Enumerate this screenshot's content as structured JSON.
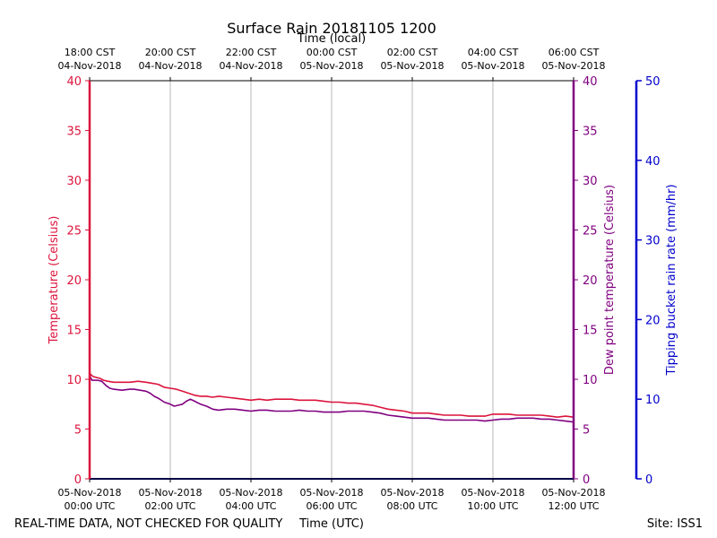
{
  "chart_data": {
    "type": "line",
    "title": "Surface Rain 20181105 1200",
    "top_axis_label": "Time (local)",
    "xlabel": "Time (UTC)",
    "footer_left": "REAL-TIME DATA, NOT CHECKED FOR QUALITY",
    "footer_right": "Site: ISS1",
    "x_range_hours": [
      0,
      12
    ],
    "x_ticks_utc": [
      {
        "hour": 0,
        "line1": "05-Nov-2018",
        "line2": "00:00 UTC"
      },
      {
        "hour": 2,
        "line1": "05-Nov-2018",
        "line2": "02:00 UTC"
      },
      {
        "hour": 4,
        "line1": "05-Nov-2018",
        "line2": "04:00 UTC"
      },
      {
        "hour": 6,
        "line1": "05-Nov-2018",
        "line2": "06:00 UTC"
      },
      {
        "hour": 8,
        "line1": "05-Nov-2018",
        "line2": "08:00 UTC"
      },
      {
        "hour": 10,
        "line1": "05-Nov-2018",
        "line2": "10:00 UTC"
      },
      {
        "hour": 12,
        "line1": "05-Nov-2018",
        "line2": "12:00 UTC"
      }
    ],
    "x_ticks_local": [
      {
        "hour": 0,
        "line1": "18:00 CST",
        "line2": "04-Nov-2018"
      },
      {
        "hour": 2,
        "line1": "20:00 CST",
        "line2": "04-Nov-2018"
      },
      {
        "hour": 4,
        "line1": "22:00 CST",
        "line2": "04-Nov-2018"
      },
      {
        "hour": 6,
        "line1": "00:00 CST",
        "line2": "05-Nov-2018"
      },
      {
        "hour": 8,
        "line1": "02:00 CST",
        "line2": "05-Nov-2018"
      },
      {
        "hour": 10,
        "line1": "04:00 CST",
        "line2": "05-Nov-2018"
      },
      {
        "hour": 12,
        "line1": "06:00 CST",
        "line2": "05-Nov-2018"
      }
    ],
    "axes": {
      "left": {
        "label": "Temperature (Celsius)",
        "ylim": [
          0,
          40
        ],
        "ticks": [
          0,
          5,
          10,
          15,
          20,
          25,
          30,
          35,
          40
        ],
        "color": "#dc143c"
      },
      "right1": {
        "label": "Dew point temperature (Celsius)",
        "ylim": [
          0,
          40
        ],
        "ticks": [
          0,
          5,
          10,
          15,
          20,
          25,
          30,
          35,
          40
        ],
        "color": "#800080"
      },
      "right2": {
        "label": "Tipping bucket rain rate (mm/hr)",
        "ylim": [
          0,
          50
        ],
        "ticks": [
          0,
          10,
          20,
          30,
          40,
          50
        ],
        "color": "#0000cd"
      }
    },
    "grid": "vertical",
    "series": [
      {
        "name": "Temperature",
        "color": "#dc143c",
        "axis": "left",
        "x": [
          0,
          0.02,
          0.08,
          0.15,
          0.25,
          0.35,
          0.45,
          0.6,
          0.8,
          1.0,
          1.2,
          1.4,
          1.55,
          1.7,
          1.85,
          2.0,
          2.15,
          2.3,
          2.45,
          2.6,
          2.75,
          2.9,
          3.05,
          3.2,
          3.4,
          3.6,
          3.8,
          4.0,
          4.2,
          4.4,
          4.6,
          4.8,
          5.0,
          5.2,
          5.4,
          5.6,
          5.8,
          6.0,
          6.2,
          6.4,
          6.6,
          6.8,
          7.0,
          7.2,
          7.4,
          7.6,
          7.8,
          8.0,
          8.2,
          8.4,
          8.6,
          8.8,
          9.0,
          9.2,
          9.4,
          9.6,
          9.8,
          10.0,
          10.2,
          10.4,
          10.6,
          10.8,
          11.0,
          11.2,
          11.4,
          11.6,
          11.8,
          12.0
        ],
        "values": [
          10.8,
          10.5,
          10.3,
          10.2,
          10.1,
          9.9,
          9.8,
          9.7,
          9.7,
          9.7,
          9.8,
          9.7,
          9.6,
          9.5,
          9.2,
          9.1,
          9.0,
          8.8,
          8.6,
          8.4,
          8.3,
          8.3,
          8.2,
          8.3,
          8.2,
          8.1,
          8.0,
          7.9,
          8.0,
          7.9,
          8.0,
          8.0,
          8.0,
          7.9,
          7.9,
          7.9,
          7.8,
          7.7,
          7.7,
          7.6,
          7.6,
          7.5,
          7.4,
          7.2,
          7.0,
          6.9,
          6.8,
          6.6,
          6.6,
          6.6,
          6.5,
          6.4,
          6.4,
          6.4,
          6.3,
          6.3,
          6.3,
          6.5,
          6.5,
          6.5,
          6.4,
          6.4,
          6.4,
          6.4,
          6.3,
          6.2,
          6.3,
          6.2
        ]
      },
      {
        "name": "Dew point temperature",
        "color": "#800080",
        "axis": "right1",
        "x": [
          0,
          0.02,
          0.06,
          0.12,
          0.2,
          0.3,
          0.4,
          0.5,
          0.6,
          0.8,
          1.0,
          1.1,
          1.25,
          1.4,
          1.5,
          1.6,
          1.7,
          1.85,
          2.0,
          2.1,
          2.2,
          2.3,
          2.4,
          2.5,
          2.6,
          2.75,
          2.9,
          3.05,
          3.2,
          3.4,
          3.6,
          3.8,
          4.0,
          4.2,
          4.4,
          4.6,
          4.8,
          5.0,
          5.2,
          5.4,
          5.6,
          5.8,
          6.0,
          6.2,
          6.4,
          6.6,
          6.8,
          7.0,
          7.2,
          7.4,
          7.6,
          7.8,
          8.0,
          8.2,
          8.4,
          8.6,
          8.8,
          9.0,
          9.2,
          9.4,
          9.6,
          9.8,
          10.0,
          10.2,
          10.4,
          10.6,
          10.8,
          11.0,
          11.2,
          11.4,
          11.6,
          11.8,
          12.0
        ],
        "values": [
          10.6,
          10.2,
          9.9,
          9.9,
          9.9,
          9.8,
          9.4,
          9.1,
          9.0,
          8.9,
          9.0,
          9.0,
          8.9,
          8.8,
          8.6,
          8.3,
          8.1,
          7.7,
          7.5,
          7.3,
          7.4,
          7.5,
          7.8,
          8.0,
          7.8,
          7.5,
          7.3,
          7.0,
          6.9,
          7.0,
          7.0,
          6.9,
          6.8,
          6.9,
          6.9,
          6.8,
          6.8,
          6.8,
          6.9,
          6.8,
          6.8,
          6.7,
          6.7,
          6.7,
          6.8,
          6.8,
          6.8,
          6.7,
          6.6,
          6.4,
          6.3,
          6.2,
          6.1,
          6.1,
          6.1,
          6.0,
          5.9,
          5.9,
          5.9,
          5.9,
          5.9,
          5.8,
          5.9,
          6.0,
          6.0,
          6.1,
          6.1,
          6.1,
          6.0,
          6.0,
          5.9,
          5.8,
          5.7
        ]
      },
      {
        "name": "Tipping bucket rain rate",
        "color": "#00008b",
        "axis": "right2",
        "x": [
          0,
          12
        ],
        "values": [
          0,
          0
        ]
      }
    ]
  }
}
